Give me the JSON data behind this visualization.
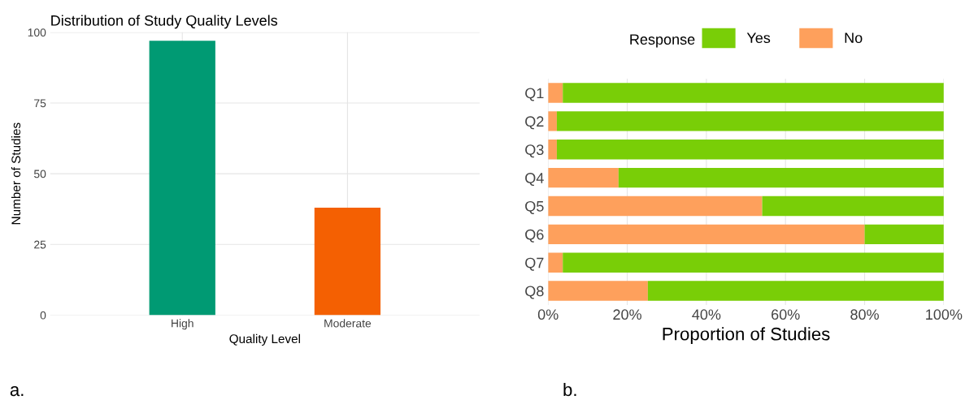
{
  "chart_data": [
    {
      "type": "bar",
      "title": "Distribution of Study Quality Levels",
      "xlabel": "Quality Level",
      "ylabel": "Number of Studies",
      "categories": [
        "High",
        "Moderate"
      ],
      "values": [
        97,
        38
      ],
      "colors": [
        "#009a73",
        "#f46002"
      ],
      "ylim": [
        0,
        100
      ],
      "yticks": [
        0,
        25,
        50,
        75,
        100
      ],
      "grid": true,
      "annotations": [
        "a."
      ]
    },
    {
      "type": "bar",
      "orientation": "horizontal",
      "stacked": true,
      "xlabel": "Proportion of Studies",
      "legend_title": "Response",
      "legend": "top",
      "categories": [
        "Q1",
        "Q2",
        "Q3",
        "Q4",
        "Q5",
        "Q6",
        "Q7",
        "Q8"
      ],
      "series": [
        {
          "name": "No",
          "color": "#fea05c",
          "values": [
            3.7,
            2.2,
            2.2,
            17.8,
            54.1,
            80,
            3.7,
            25.2
          ]
        },
        {
          "name": "Yes",
          "color": "#79ce07",
          "values": [
            96.3,
            97.8,
            97.8,
            82.2,
            45.9,
            20,
            96.3,
            74.8
          ]
        }
      ],
      "xlim": [
        0,
        100
      ],
      "xticks": [
        {
          "value": 0,
          "label": "0%"
        },
        {
          "value": 20,
          "label": "20%"
        },
        {
          "value": 40,
          "label": "40%"
        },
        {
          "value": 60,
          "label": "60%"
        },
        {
          "value": 80,
          "label": "80%"
        },
        {
          "value": 100,
          "label": "100%"
        }
      ],
      "grid": "x",
      "annotations": [
        "b."
      ]
    }
  ]
}
